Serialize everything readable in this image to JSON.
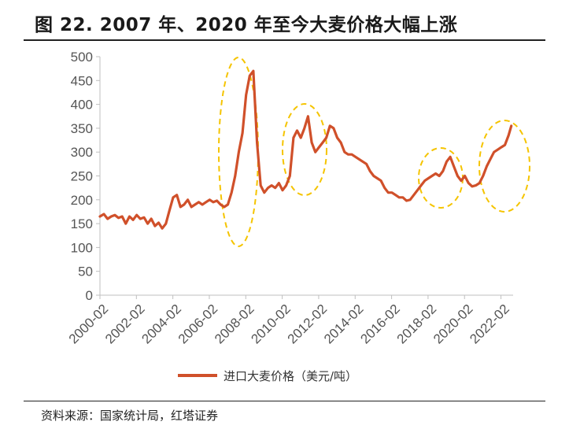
{
  "page": {
    "title": "图 22. 2007 年、2020 年至今大麦价格大幅上涨",
    "source": "资料来源：国家统计局，红塔证券"
  },
  "chart_data": {
    "type": "line",
    "title": "图 22. 2007 年、2020 年至今大麦价格大幅上涨",
    "xlabel": "",
    "ylabel": "",
    "ylim": [
      0,
      500
    ],
    "yticks": [
      0,
      50,
      100,
      150,
      200,
      250,
      300,
      350,
      400,
      450,
      500
    ],
    "xlim": [
      2000.083,
      2022.75
    ],
    "xticks": [
      {
        "label": "2000-02",
        "value": 2000.083
      },
      {
        "label": "2002-02",
        "value": 2002.083
      },
      {
        "label": "2004-02",
        "value": 2004.083
      },
      {
        "label": "2006-02",
        "value": 2006.083
      },
      {
        "label": "2008-02",
        "value": 2008.083
      },
      {
        "label": "2010-02",
        "value": 2010.083
      },
      {
        "label": "2012-02",
        "value": 2012.083
      },
      {
        "label": "2014-02",
        "value": 2014.083
      },
      {
        "label": "2016-02",
        "value": 2016.083
      },
      {
        "label": "2018-02",
        "value": 2018.083
      },
      {
        "label": "2020-02",
        "value": 2020.083
      },
      {
        "label": "2022-02",
        "value": 2022.083
      }
    ],
    "grid": false,
    "legend": "bottom-center",
    "series": [
      {
        "name": "进口大麦价格（美元/吨）",
        "color": "#d0502a",
        "x": [
          2000.083,
          2000.3,
          2000.5,
          2000.7,
          2000.9,
          2001.1,
          2001.3,
          2001.5,
          2001.7,
          2001.9,
          2002.1,
          2002.3,
          2002.5,
          2002.7,
          2002.9,
          2003.1,
          2003.3,
          2003.5,
          2003.7,
          2003.9,
          2004.1,
          2004.3,
          2004.5,
          2004.7,
          2004.9,
          2005.1,
          2005.3,
          2005.5,
          2005.7,
          2005.9,
          2006.1,
          2006.3,
          2006.5,
          2006.7,
          2006.9,
          2007.1,
          2007.3,
          2007.5,
          2007.7,
          2007.9,
          2008.1,
          2008.3,
          2008.5,
          2008.7,
          2008.9,
          2009.1,
          2009.3,
          2009.5,
          2009.7,
          2009.9,
          2010.1,
          2010.3,
          2010.5,
          2010.7,
          2010.9,
          2011.1,
          2011.3,
          2011.5,
          2011.7,
          2011.9,
          2012.1,
          2012.3,
          2012.5,
          2012.7,
          2012.9,
          2013.1,
          2013.3,
          2013.5,
          2013.7,
          2013.9,
          2014.1,
          2014.3,
          2014.5,
          2014.7,
          2014.9,
          2015.1,
          2015.3,
          2015.5,
          2015.7,
          2015.9,
          2016.1,
          2016.3,
          2016.5,
          2016.7,
          2016.9,
          2017.1,
          2017.3,
          2017.5,
          2017.7,
          2017.9,
          2018.1,
          2018.3,
          2018.5,
          2018.7,
          2018.9,
          2019.1,
          2019.3,
          2019.5,
          2019.7,
          2019.9,
          2020.1,
          2020.3,
          2020.5,
          2020.7,
          2020.9,
          2021.1,
          2021.3,
          2021.5,
          2021.7,
          2021.9,
          2022.1,
          2022.3,
          2022.5,
          2022.65
        ],
        "values": [
          165,
          170,
          160,
          165,
          168,
          162,
          165,
          150,
          165,
          158,
          168,
          160,
          163,
          150,
          160,
          145,
          152,
          140,
          150,
          178,
          205,
          210,
          185,
          190,
          200,
          185,
          190,
          195,
          190,
          195,
          200,
          195,
          198,
          190,
          185,
          190,
          215,
          250,
          300,
          340,
          420,
          460,
          470,
          320,
          230,
          215,
          225,
          230,
          225,
          235,
          220,
          230,
          250,
          330,
          345,
          330,
          350,
          375,
          320,
          300,
          310,
          320,
          330,
          355,
          350,
          330,
          320,
          300,
          295,
          295,
          290,
          285,
          280,
          275,
          260,
          250,
          245,
          240,
          225,
          215,
          215,
          210,
          205,
          205,
          198,
          200,
          210,
          220,
          230,
          240,
          245,
          250,
          255,
          250,
          260,
          280,
          290,
          270,
          250,
          240,
          250,
          235,
          228,
          230,
          235,
          250,
          270,
          285,
          300,
          305,
          310,
          315,
          335,
          355
        ]
      }
    ]
  }
}
